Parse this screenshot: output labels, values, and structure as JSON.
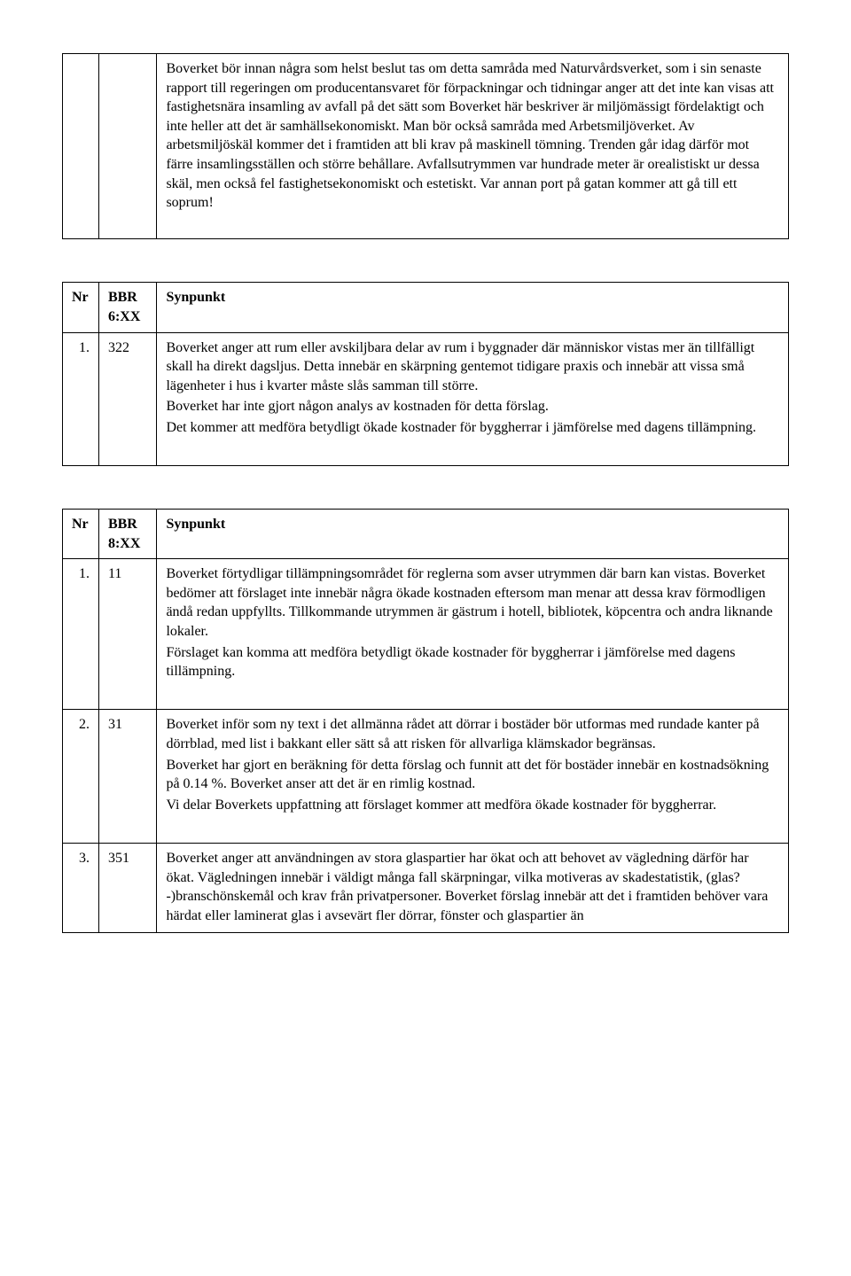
{
  "table1": {
    "cell_text": "Boverket bör innan några som helst beslut tas om detta samråda med Naturvårdsverket, som i sin senaste rapport till regeringen om producentansvaret för förpackningar och tidningar anger att det inte kan visas att fastighetsnära insamling av avfall på det sätt som Boverket här beskriver är miljömässigt fördelaktigt och inte heller att det är samhällsekonomiskt. Man bör också samråda med Arbetsmiljöverket. Av arbetsmiljöskäl kommer det i framtiden att bli krav på maskinell tömning. Trenden går idag därför mot färre insamlingsställen och större behållare. Avfallsutrymmen var hundrade meter är orealistiskt ur dessa skäl, men också fel fastighetsekonomiskt och estetiskt. Var annan port på gatan kommer att gå till ett soprum!"
  },
  "table2": {
    "headers": {
      "nr": "Nr",
      "bbr": "BBR 6:XX",
      "syn": "Synpunkt"
    },
    "rows": [
      {
        "nr": "1.",
        "bbr": "322",
        "syn_p1": "Boverket anger att rum eller avskiljbara delar av rum i byggnader där människor vistas mer än tillfälligt skall ha direkt dagsljus. Detta innebär en skärpning gentemot tidigare praxis och innebär att vissa små lägenheter i hus i kvarter måste slås samman till större.",
        "syn_p2": "Boverket har inte gjort någon analys av kostnaden för detta förslag.",
        "syn_p3": "Det kommer att medföra betydligt ökade kostnader för byggherrar i jämförelse med dagens tillämpning."
      }
    ]
  },
  "table3": {
    "headers": {
      "nr": "Nr",
      "bbr": "BBR 8:XX",
      "syn": "Synpunkt"
    },
    "rows": [
      {
        "nr": "1.",
        "bbr": "11",
        "syn_p1": "Boverket förtydligar tillämpningsområdet för reglerna som avser utrymmen där barn kan vistas. Boverket bedömer att förslaget inte innebär några ökade kostnaden eftersom man menar att dessa krav förmodligen ändå redan uppfyllts. Tillkommande utrymmen är gästrum i hotell, bibliotek, köpcentra och andra liknande lokaler.",
        "syn_p2": "Förslaget kan komma att medföra betydligt ökade kostnader för byggherrar i jämförelse med dagens tillämpning."
      },
      {
        "nr": "2.",
        "bbr": "31",
        "syn_p1": "Boverket inför som ny text i det allmänna rådet att dörrar i bostäder bör utformas med rundade kanter på dörrblad, med list i bakkant eller sätt så att risken för allvarliga klämskador begränsas.",
        "syn_p2": "Boverket har gjort en beräkning för detta förslag och funnit att det för bostäder innebär en kostnadsökning på 0.14 %. Boverket anser att det är en rimlig kostnad.",
        "syn_p3": "Vi delar Boverkets uppfattning att förslaget kommer att medföra ökade kostnader för byggherrar."
      },
      {
        "nr": "3.",
        "bbr": "351",
        "syn_p1": "Boverket anger att användningen av stora glaspartier har ökat och att behovet av vägledning därför har ökat. Vägledningen innebär i väldigt många fall skärpningar, vilka motiveras av skadestatistik, (glas?-)branschönskemål och krav från privatpersoner. Boverket förslag innebär att det i framtiden behöver vara härdat eller laminerat glas i avsevärt fler dörrar, fönster och glaspartier än"
      }
    ]
  }
}
